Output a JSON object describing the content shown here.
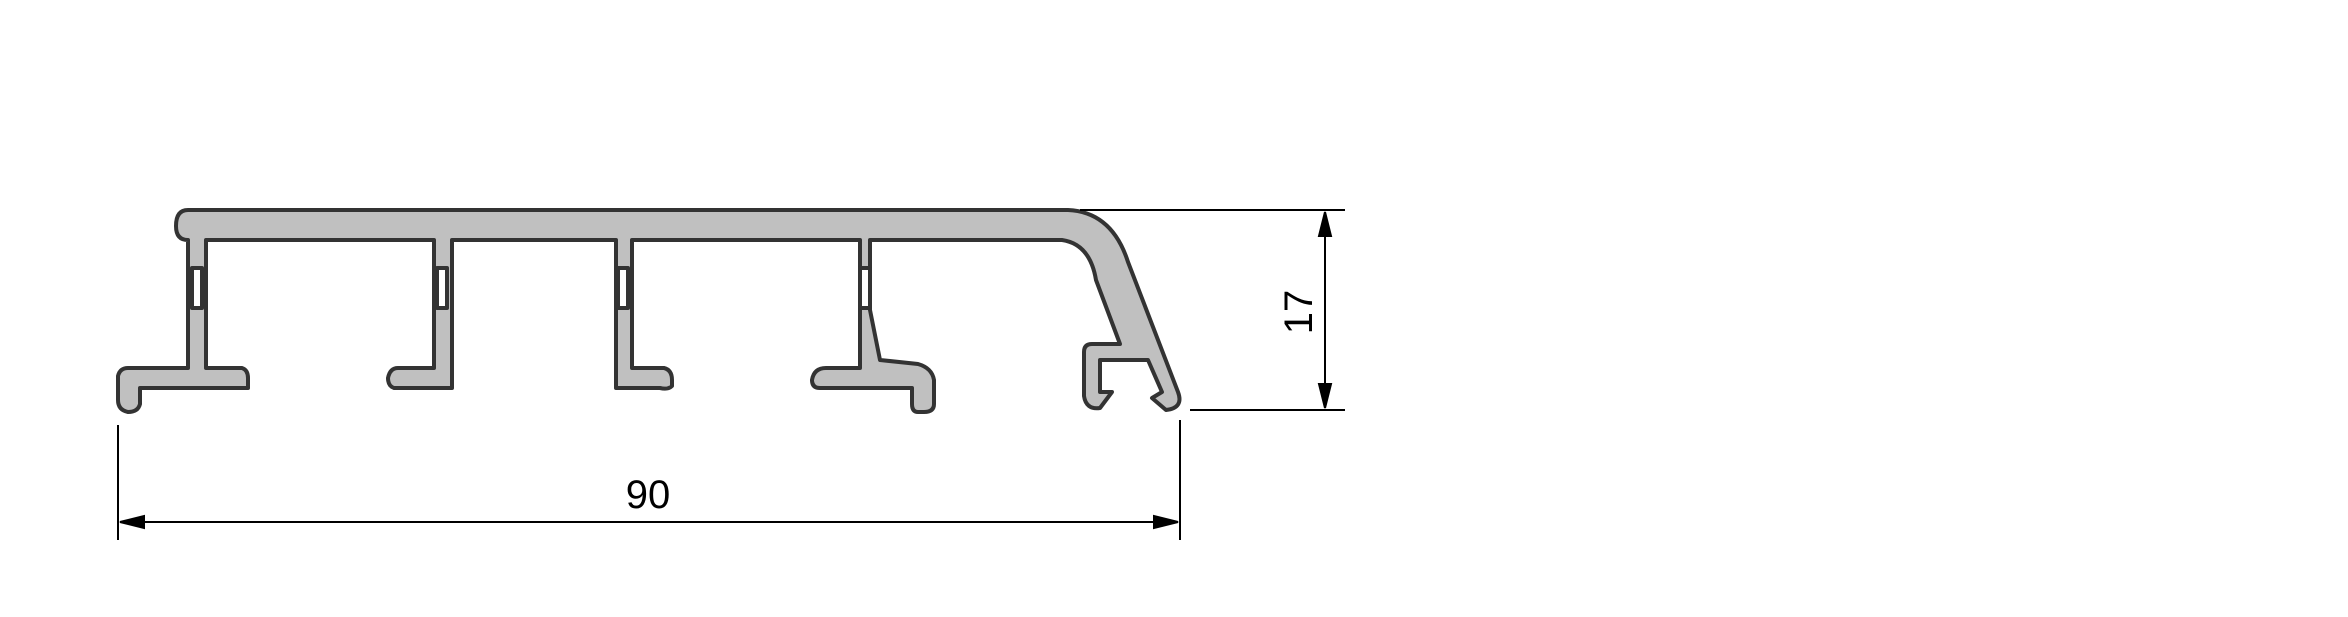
{
  "drawing": {
    "description_labels": {
      "width_dimension": "90",
      "height_dimension": "17"
    },
    "colors": {
      "profile_fill": "#c0c0c0",
      "profile_stroke": "#333333",
      "dimension_line": "#000000",
      "background": "#ffffff"
    }
  }
}
